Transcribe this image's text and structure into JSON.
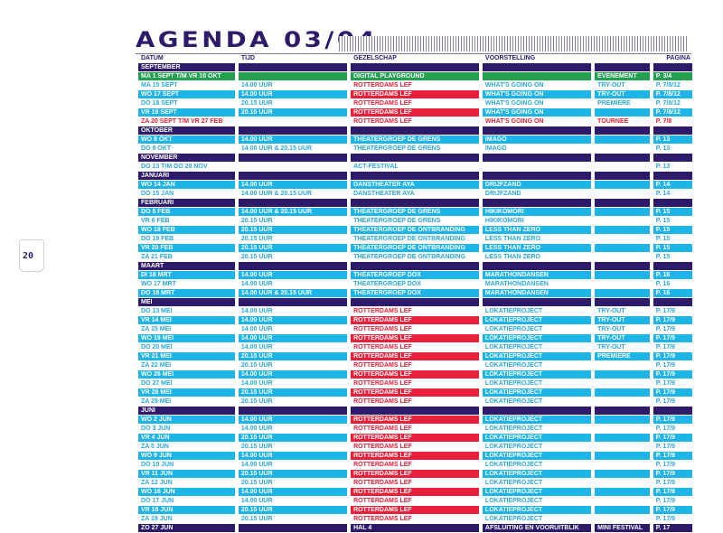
{
  "title": "AGENDA 03/04",
  "page_number": "20",
  "colors": {
    "purple": "#2e1a6b",
    "blue": "#1eb4e8",
    "green": "#22a050",
    "red": "#e8203a"
  },
  "columns": [
    "DATUM",
    "TIJD",
    "GEZELSCHAP",
    "VOORSTELLING",
    "",
    "PAGINA"
  ],
  "rows": [
    {
      "type": "month",
      "d": "SEPTEMBER"
    },
    {
      "type": "green",
      "d": "MA 1 SEPT T/M VR 10 OKT",
      "t": "",
      "g": "DIGITAL PLAYGROUND",
      "v": "",
      "s": "EVENEMENT",
      "p": "P. 3/4"
    },
    {
      "type": "plain",
      "d": "MA 15 SEPT",
      "t": "14.00 UUR",
      "g": "ROTTERDAMS LEF",
      "v": "WHAT'S GOING ON",
      "s": "TRY-OUT",
      "p": "P. 7/8/12"
    },
    {
      "type": "fill",
      "d": "WO 17 SEPT",
      "t": "14.00 UUR",
      "g": "ROTTERDAMS LEF",
      "v": "WHAT'S GOING ON",
      "s": "TRY-OUT",
      "p": "P. 7/8/12"
    },
    {
      "type": "plain",
      "d": "DO 18 SEPT",
      "t": "20.15 UUR",
      "g": "ROTTERDAMS LEF",
      "v": "WHAT'S GOING ON",
      "s": "PREMIERE",
      "p": "P. 7/8/12"
    },
    {
      "type": "fill",
      "d": "VR 19 SEPT",
      "t": "20.15 UUR",
      "g": "ROTTERDAMS LEF",
      "v": "WHAT'S GOING ON",
      "s": "",
      "p": "P. 7/8/12"
    },
    {
      "type": "red",
      "d": "ZA 20 SEPT T/M VR 27 FEB",
      "t": "",
      "g": "ROTTERDAMS LEF",
      "v": "WHAT'S GOING ON",
      "s": "TOURNEE",
      "p": "P. 7/8"
    },
    {
      "type": "month",
      "d": "OKTOBER"
    },
    {
      "type": "fill",
      "d": "WO 8 OKT",
      "t": "14.00 UUR",
      "g": "THEATERGROEP DE GRENS",
      "v": "IMAGO",
      "s": "",
      "p": "P. 13"
    },
    {
      "type": "plain",
      "d": "DO 9 OKT",
      "t": "14.00 UUR & 20.15 UUR",
      "g": "THEATERGROEP DE GRENS",
      "v": "IMAGO",
      "s": "",
      "p": "P. 13"
    },
    {
      "type": "month",
      "d": "NOVEMBER"
    },
    {
      "type": "plain",
      "d": "DO 13 T/M DO 20 NOV",
      "t": "",
      "g": "ACT-FESTIVAL",
      "v": "",
      "s": "",
      "p": "P. 13"
    },
    {
      "type": "month",
      "d": "JANUARI"
    },
    {
      "type": "fill",
      "d": "WO 14 JAN",
      "t": "14.00 UUR",
      "g": "DANSTHEATER AYA",
      "v": "DRIJFZAND",
      "s": "",
      "p": "P. 14"
    },
    {
      "type": "plain",
      "d": "DO 15 JAN",
      "t": "14.00 UUR & 20.15 UUR",
      "g": "DANSTHEATER AYA",
      "v": "DRIJFZAND",
      "s": "",
      "p": "P. 14"
    },
    {
      "type": "month",
      "d": "FEBRUARI"
    },
    {
      "type": "fill",
      "d": "DO 5 FEB",
      "t": "14.00 UUR & 20.15 UUR",
      "g": "THEATERGROEP DE GRENS",
      "v": "HIKIKOMORI",
      "s": "",
      "p": "P. 15"
    },
    {
      "type": "plain",
      "d": "VR 6 FEB",
      "t": "20.15 UUR",
      "g": "THEATERGROEP DE GRENS",
      "v": "HIKIKOMORI",
      "s": "",
      "p": "P. 15"
    },
    {
      "type": "fill",
      "d": "WO 18 FEB",
      "t": "20.15 UUR",
      "g": "THEATERGROEP DE ONTBRANDING",
      "v": "LESS THAN ZERO",
      "s": "",
      "p": "P. 15"
    },
    {
      "type": "plain",
      "d": "DO 19 FEB",
      "t": "20.15 UUR",
      "g": "THEATERGROEP DE ONTBRANDING",
      "v": "LESS THAN ZERO",
      "s": "",
      "p": "P. 15"
    },
    {
      "type": "fill",
      "d": "VR 20 FEB",
      "t": "20.15 UUR",
      "g": "THEATERGROEP DE ONTBRANDING",
      "v": "LESS THAN ZERO",
      "s": "",
      "p": "P. 15"
    },
    {
      "type": "plain",
      "d": "ZA 21 FEB",
      "t": "20.15 UUR",
      "g": "THEATERGROEP DE ONTBRANDING",
      "v": "LESS THAN ZERO",
      "s": "",
      "p": "P. 15"
    },
    {
      "type": "month",
      "d": "MAART"
    },
    {
      "type": "fill",
      "d": "DI 16 MRT",
      "t": "14.00 UUR",
      "g": "THEATERGROEP DOX",
      "v": "MARATHONDANSEN",
      "s": "",
      "p": "P. 16"
    },
    {
      "type": "plain",
      "d": "WO 17 MRT",
      "t": "14.00 UUR",
      "g": "THEATERGROEP DOX",
      "v": "MARATHONDANSEN",
      "s": "",
      "p": "P. 16"
    },
    {
      "type": "fill",
      "d": "DO 18 MRT",
      "t": "14.00 UUR & 20.15 UUR",
      "g": "THEATERGROEP DOX",
      "v": "MARATHONDANSEN",
      "s": "",
      "p": "P. 16"
    },
    {
      "type": "month",
      "d": "MEI"
    },
    {
      "type": "plain",
      "d": "DO 13 MEI",
      "t": "14.00 UUR",
      "g": "ROTTERDAMS LEF",
      "v": "LOKATIEPROJECT",
      "s": "TRY-OUT",
      "p": "P. 17/9"
    },
    {
      "type": "fill",
      "d": "VR 14 MEI",
      "t": "14.00 UUR",
      "g": "ROTTERDAMS LEF",
      "v": "LOKATIEPROJECT",
      "s": "TRY-OUT",
      "p": "P. 17/9"
    },
    {
      "type": "plain",
      "d": "ZA 15 MEI",
      "t": "14.00 UUR",
      "g": "ROTTERDAMS LEF",
      "v": "LOKATIEPROJECT",
      "s": "TRY-OUT",
      "p": "P. 17/9"
    },
    {
      "type": "fill",
      "d": "WO 19 MEI",
      "t": "14.00 UUR",
      "g": "ROTTERDAMS LEF",
      "v": "LOKATIEPROJECT",
      "s": "TRY-OUT",
      "p": "P. 17/9"
    },
    {
      "type": "plain",
      "d": "DO 20 MEI",
      "t": "14.00 UUR",
      "g": "ROTTERDAMS LEF",
      "v": "LOKATIEPROJECT",
      "s": "TRY-OUT",
      "p": "P. 17/9"
    },
    {
      "type": "fill",
      "d": "VR 21 MEI",
      "t": "20.15 UUR",
      "g": "ROTTERDAMS LEF",
      "v": "LOKATIEPROJECT",
      "s": "PREMIERE",
      "p": "P. 17/9"
    },
    {
      "type": "plain",
      "d": "ZA 22 MEI",
      "t": "20.15 UUR",
      "g": "ROTTERDAMS LEF",
      "v": "LOKATIEPROJECT",
      "s": "",
      "p": "P. 17/9"
    },
    {
      "type": "fill",
      "d": "WO 26 MEI",
      "t": "14.00 UUR",
      "g": "ROTTERDAMS LEF",
      "v": "LOKATIEPROJECT",
      "s": "",
      "p": "P. 17/9"
    },
    {
      "type": "plain",
      "d": "DO 27 MEI",
      "t": "14.00 UUR",
      "g": "ROTTERDAMS LEF",
      "v": "LOKATIEPROJECT",
      "s": "",
      "p": "P. 17/9"
    },
    {
      "type": "fill",
      "d": "VR 28 MEI",
      "t": "20.15 UUR",
      "g": "ROTTERDAMS LEF",
      "v": "LOKATIEPROJECT",
      "s": "",
      "p": "P. 17/9"
    },
    {
      "type": "plain",
      "d": "ZA 29 MEI",
      "t": "20.15 UUR",
      "g": "ROTTERDAMS LEF",
      "v": "LOKATIEPROJECT",
      "s": "",
      "p": "P. 17/9"
    },
    {
      "type": "month",
      "d": "JUNI"
    },
    {
      "type": "fill",
      "d": "WO 2 JUN",
      "t": "14.00 UUR",
      "g": "ROTTERDAMS LEF",
      "v": "LOKATIEPROJECT",
      "s": "",
      "p": "P. 17/9"
    },
    {
      "type": "plain",
      "d": "DO 3 JUN",
      "t": "14.00 UUR",
      "g": "ROTTERDAMS LEF",
      "v": "LOKATIEPROJECT",
      "s": "",
      "p": "P. 17/9"
    },
    {
      "type": "fill",
      "d": "VR 4 JUN",
      "t": "20.15 UUR",
      "g": "ROTTERDAMS LEF",
      "v": "LOKATIEPROJECT",
      "s": "",
      "p": "P. 17/9"
    },
    {
      "type": "plain",
      "d": "ZA 5 JUN",
      "t": "20.15 UUR",
      "g": "ROTTERDAMS LEF",
      "v": "LOKATIEPROJECT",
      "s": "",
      "p": "P. 17/9"
    },
    {
      "type": "fill",
      "d": "WO 9 JUN",
      "t": "14.00 UUR",
      "g": "ROTTERDAMS LEF",
      "v": "LOKATIEPROJECT",
      "s": "",
      "p": "P. 17/9"
    },
    {
      "type": "plain",
      "d": "DO 10 JUN",
      "t": "14.00 UUR",
      "g": "ROTTERDAMS LEF",
      "v": "LOKATIEPROJECT",
      "s": "",
      "p": "P. 17/9"
    },
    {
      "type": "fill",
      "d": "VR 11 JUN",
      "t": "20.15 UUR",
      "g": "ROTTERDAMS LEF",
      "v": "LOKATIEPROJECT",
      "s": "",
      "p": "P. 17/9"
    },
    {
      "type": "plain",
      "d": "ZA 12 JUN",
      "t": "20.15 UUR",
      "g": "ROTTERDAMS LEF",
      "v": "LOKATIEPROJECT",
      "s": "",
      "p": "P. 17/9"
    },
    {
      "type": "fill",
      "d": "WO 16 JUN",
      "t": "14.00 UUR",
      "g": "ROTTERDAMS LEF",
      "v": "LOKATIEPROJECT",
      "s": "",
      "p": "P. 17/9"
    },
    {
      "type": "plain",
      "d": "DO 17 JUN",
      "t": "14.00 UUR",
      "g": "ROTTERDAMS LEF",
      "v": "LOKATIEPROJECT",
      "s": "",
      "p": "P. 17/9"
    },
    {
      "type": "fill",
      "d": "VR 18 JUN",
      "t": "20.15 UUR",
      "g": "ROTTERDAMS LEF",
      "v": "LOKATIEPROJECT",
      "s": "",
      "p": "P. 17/9"
    },
    {
      "type": "plain",
      "d": "ZA 19 JUN",
      "t": "20.15 UUR",
      "g": "ROTTERDAMS LEF",
      "v": "LOKATIEPROJECT",
      "s": "",
      "p": "P. 17/9"
    },
    {
      "type": "dark",
      "d": "ZO 27 JUN",
      "t": "",
      "g": "HAL 4",
      "v": "AFSLUITING EN VOORUITBLIK",
      "s": "MINI FESTIVAL",
      "p": "P. 17"
    }
  ]
}
